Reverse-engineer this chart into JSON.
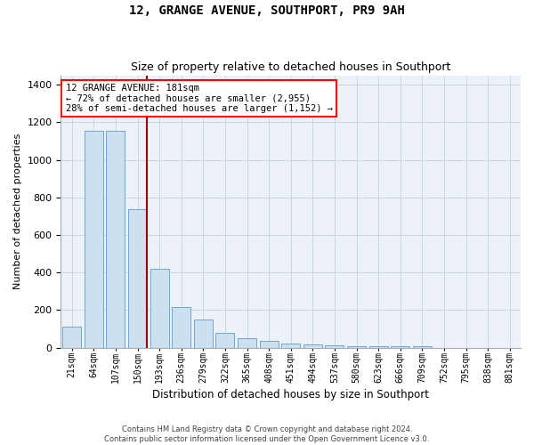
{
  "title": "12, GRANGE AVENUE, SOUTHPORT, PR9 9AH",
  "subtitle": "Size of property relative to detached houses in Southport",
  "xlabel": "Distribution of detached houses by size in Southport",
  "ylabel": "Number of detached properties",
  "footer_line1": "Contains HM Land Registry data © Crown copyright and database right 2024.",
  "footer_line2": "Contains public sector information licensed under the Open Government Licence v3.0.",
  "bar_color": "#cce0f0",
  "bar_edge_color": "#5b9bd5",
  "grid_color": "#c8d4e4",
  "bg_color": "#edf2f8",
  "categories": [
    "21sqm",
    "64sqm",
    "107sqm",
    "150sqm",
    "193sqm",
    "236sqm",
    "279sqm",
    "322sqm",
    "365sqm",
    "408sqm",
    "451sqm",
    "494sqm",
    "537sqm",
    "580sqm",
    "623sqm",
    "666sqm",
    "709sqm",
    "752sqm",
    "795sqm",
    "838sqm",
    "881sqm"
  ],
  "values": [
    110,
    1155,
    1155,
    735,
    420,
    215,
    152,
    80,
    52,
    37,
    22,
    15,
    12,
    10,
    10,
    9,
    10,
    0,
    0,
    0,
    0
  ],
  "red_line_x": 3.42,
  "annotation_line1": "12 GRANGE AVENUE: 181sqm",
  "annotation_line2": "← 72% of detached houses are smaller (2,955)",
  "annotation_line3": "28% of semi-detached houses are larger (1,152) →",
  "red_line_color": "#990000",
  "ylim_min": 0,
  "ylim_max": 1450,
  "yticks": [
    0,
    200,
    400,
    600,
    800,
    1000,
    1200,
    1400
  ],
  "title_fontsize": 10,
  "subtitle_fontsize": 9,
  "xlabel_fontsize": 8.5,
  "ylabel_fontsize": 8,
  "tick_fontsize": 8,
  "xtick_fontsize": 7,
  "annotation_fontsize": 7.5,
  "footer_fontsize": 6
}
